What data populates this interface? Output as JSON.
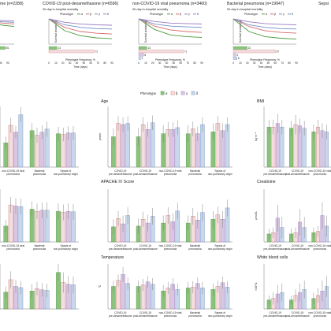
{
  "colors": {
    "alpha": "#8cc37c",
    "beta": "#f2dede",
    "gamma": "#d8c6e2",
    "delta": "#c8d8ea",
    "alpha_line": "#4a9a3c",
    "beta_line": "#d66a6a",
    "gamma_line": "#9a7cc0",
    "delta_line": "#6f8fc8",
    "axis": "#555555",
    "err": "#777777"
  },
  "legend": {
    "title": "Phenotype",
    "labels": [
      "α",
      "β",
      "γ",
      "δ"
    ]
  },
  "km_panels": [
    {
      "title": "me (n=2288)",
      "subtitle": "",
      "xlabel": "",
      "ylabel": "",
      "xticks": [
        "70",
        "80",
        "90"
      ],
      "labels": [
        "81",
        ""
      ],
      "show_legend": false,
      "series": [
        [
          0,
          1.0,
          0.9,
          0.85,
          0.82
        ],
        [
          0,
          1.0,
          0.93,
          0.9,
          0.88
        ],
        [
          0,
          1.0,
          0.97,
          0.96,
          0.95
        ],
        [
          0,
          1.0,
          0.95,
          0.93,
          0.92
        ]
      ]
    },
    {
      "title": "COVID-19 post-dexamethasone (n=6596)",
      "subtitle": "90-day in-hospital mortality",
      "xlabel": "Time (days)",
      "ylabel": "Survival probability",
      "xticks": [
        "0",
        "10",
        "20",
        "30",
        "40",
        "50",
        "60",
        "70",
        "80",
        "90"
      ],
      "labels": [
        "13",
        "72"
      ],
      "show_legend": true,
      "series": [
        [
          1.0,
          0.72,
          0.6,
          0.55,
          0.53
        ],
        [
          1.0,
          0.8,
          0.7,
          0.66,
          0.64
        ],
        [
          1.0,
          0.92,
          0.88,
          0.86,
          0.85
        ],
        [
          1.0,
          0.86,
          0.8,
          0.77,
          0.76
        ]
      ]
    },
    {
      "title": "non-COVID-19 viral pneumonia (n=3460)",
      "subtitle": "90-day in-hospital mortality",
      "xlabel": "Time (days)",
      "ylabel": "Survival probability",
      "xticks": [
        "0",
        "10",
        "20",
        "30",
        "40",
        "50",
        "60",
        "70",
        "80",
        "90"
      ],
      "labels": [
        "13",
        "71",
        "8",
        "3"
      ],
      "show_legend": true,
      "series": [
        [
          1.0,
          0.75,
          0.62,
          0.58,
          0.56
        ],
        [
          1.0,
          0.83,
          0.74,
          0.7,
          0.68
        ],
        [
          1.0,
          0.94,
          0.9,
          0.89,
          0.88
        ],
        [
          1.0,
          0.88,
          0.83,
          0.81,
          0.8
        ]
      ]
    },
    {
      "title": "Bacterial pneumonia (n=19947)",
      "subtitle": "90-day in-hospital mortality",
      "xlabel": "Time (days)",
      "ylabel": "Survival probability",
      "xticks": [
        "0",
        "10",
        "20",
        "30",
        "40",
        "50",
        "60",
        "70",
        "80",
        "90"
      ],
      "labels": [
        "22",
        "67",
        "4",
        "6"
      ],
      "show_legend": true,
      "series": [
        [
          1.0,
          0.7,
          0.58,
          0.54,
          0.52
        ],
        [
          1.0,
          0.82,
          0.72,
          0.68,
          0.66
        ],
        [
          1.0,
          0.93,
          0.89,
          0.87,
          0.86
        ],
        [
          1.0,
          0.86,
          0.8,
          0.77,
          0.76
        ]
      ]
    },
    {
      "title": "Sepsi",
      "subtitle": "",
      "xlabel": "",
      "ylabel": "",
      "xticks": [],
      "labels": [],
      "show_legend": false,
      "series": []
    }
  ],
  "km_common": {
    "phenotype_freq_label": "Phenotype Frequency, %",
    "xticks_freq": [
      "0",
      "20",
      "40",
      "60",
      "80"
    ]
  },
  "bar_panels": [
    {
      "title": "",
      "ylabel": "",
      "categories": [
        "non-COVID-19 viral pneumonia",
        "Bacterial pneumonia",
        "Sepsis of non-pulmonary origin"
      ],
      "values": [
        [
          3.2,
          5.5,
          4.6,
          6.9
        ],
        [
          4.8,
          4.2,
          4.6,
          5.0
        ],
        [
          4.4,
          4.3,
          4.5,
          4.5
        ]
      ],
      "err": [
        [
          0.8,
          1.0,
          0.8,
          1.0
        ],
        [
          1.0,
          1.0,
          0.9,
          1.0
        ],
        [
          0.9,
          0.9,
          0.9,
          0.9
        ]
      ],
      "yrange": [
        0,
        8
      ]
    },
    {
      "title": "Age",
      "ylabel": "years",
      "categories": [
        "COVID-19 pre-dexamethasone",
        "COVID-19 post-dexamethasone",
        "non-COVID-19 viral pneumonia",
        "Bacterial pneumonia",
        "Sepsis of non-pulmonary origin"
      ],
      "values": [
        [
          50,
          72,
          70,
          72
        ],
        [
          50,
          70,
          62,
          73
        ],
        [
          55,
          62,
          62,
          65
        ],
        [
          55,
          63,
          55,
          70
        ],
        [
          58,
          72,
          60,
          70
        ]
      ],
      "err": [
        [
          14,
          12,
          12,
          12
        ],
        [
          14,
          12,
          12,
          12
        ],
        [
          14,
          12,
          12,
          12
        ],
        [
          14,
          12,
          12,
          12
        ],
        [
          14,
          12,
          12,
          12
        ]
      ],
      "yrange": [
        0,
        100
      ]
    },
    {
      "title": "BMI",
      "ylabel": "kg m⁻²",
      "categories": [
        "COVID-19 pre-dexamethasone",
        "COVID-19 post-dexamethasone",
        "non-COVID-19 viral pneumonia"
      ],
      "values": [
        [
          33,
          33,
          36,
          33
        ],
        [
          32,
          35,
          34,
          32
        ],
        [
          29,
          33,
          30,
          29
        ]
      ],
      "err": [
        [
          6,
          6,
          8,
          6
        ],
        [
          6,
          8,
          6,
          6
        ],
        [
          6,
          6,
          6,
          6
        ]
      ],
      "yrange": [
        0,
        50
      ]
    },
    {
      "title": "",
      "ylabel": "",
      "categories": [
        "non-COVID-19 viral pneumonia",
        "Bacterial pneumonia",
        "Sepsis of non-pulmonary origin"
      ],
      "values": [
        [
          3.0,
          7.0,
          6.8,
          6.7
        ],
        [
          6.2,
          5.8,
          6.0,
          6.0
        ],
        [
          5.8,
          5.6,
          5.8,
          5.7
        ]
      ],
      "err": [
        [
          1.2,
          1.5,
          1.5,
          1.5
        ],
        [
          1.5,
          1.5,
          1.5,
          1.5
        ],
        [
          1.5,
          1.5,
          1.5,
          1.5
        ]
      ],
      "yrange": [
        0,
        10
      ]
    },
    {
      "title": "APACHE IV Score",
      "ylabel": "",
      "categories": [
        "COVID-19 pre-dexamethasone",
        "COVID-19 post-dexamethasone",
        "non-COVID-19 viral pneumonia",
        "Bacterial pneumonia",
        "Sepsis of non-pulmonary origin"
      ],
      "values": [
        [
          40,
          62,
          48,
          70
        ],
        [
          42,
          60,
          50,
          68
        ],
        [
          50,
          70,
          54,
          82
        ],
        [
          50,
          68,
          58,
          78
        ],
        [
          60,
          72,
          60,
          90
        ]
      ],
      "err": [
        [
          20,
          20,
          22,
          22
        ],
        [
          20,
          20,
          22,
          22
        ],
        [
          20,
          22,
          22,
          22
        ],
        [
          20,
          22,
          22,
          22
        ],
        [
          22,
          22,
          22,
          22
        ]
      ],
      "yrange": [
        0,
        140
      ]
    },
    {
      "title": "Creatinine",
      "ylabel": "μmol/L",
      "categories": [
        "COVID-19 pre-dexamethasone",
        "COVID-19 post-dexamethasone",
        "non-COVID-19 viral pneumonia"
      ],
      "values": [
        [
          60,
          70,
          180,
          110
        ],
        [
          60,
          70,
          150,
          110
        ],
        [
          70,
          80,
          200,
          120
        ]
      ],
      "err": [
        [
          40,
          40,
          100,
          80
        ],
        [
          40,
          40,
          100,
          80
        ],
        [
          40,
          40,
          100,
          80
        ]
      ],
      "yrange": [
        0,
        400
      ]
    },
    {
      "title": "",
      "ylabel": "",
      "categories": [
        "",
        "",
        ""
      ],
      "values": [
        [
          3.0,
          5.2,
          4.0,
          3.8
        ],
        [
          3.2,
          3.6,
          3.4,
          3.3
        ],
        [
          6.5,
          4.7,
          4.4,
          4.3
        ]
      ],
      "err": [
        [
          1.0,
          1.5,
          1.2,
          1.2
        ],
        [
          1.2,
          1.2,
          1.2,
          1.2
        ],
        [
          1.5,
          1.8,
          1.5,
          1.5
        ]
      ],
      "yrange": [
        0,
        8
      ]
    },
    {
      "title": "Temperature",
      "ylabel": "°C",
      "categories": [
        "COVID-19 pre-dexamethasone",
        "COVID-19 post-dexamethasone",
        "non-COVID-19 viral pneumonia",
        "Bacterial pneumonia",
        "Sepsis of non-pulmonary origin"
      ],
      "values": [
        [
          38.0,
          38.8,
          39.6,
          38.4
        ],
        [
          38.0,
          38.2,
          38.6,
          38.3
        ],
        [
          37.4,
          37.8,
          38.3,
          37.6
        ],
        [
          37.8,
          37.9,
          38.4,
          37.8
        ],
        [
          37.6,
          38.0,
          38.5,
          37.9
        ]
      ],
      "err": [
        [
          0.8,
          0.8,
          1.0,
          0.8
        ],
        [
          0.8,
          0.8,
          0.8,
          0.8
        ],
        [
          0.8,
          0.8,
          0.8,
          0.8
        ],
        [
          0.8,
          0.8,
          0.8,
          0.8
        ],
        [
          0.8,
          0.8,
          0.8,
          0.8
        ]
      ],
      "yrange": [
        35,
        41
      ]
    },
    {
      "title": "White blood cells",
      "ylabel": "×10⁹/L",
      "categories": [
        "COVID-19 pre-dexamethasone",
        "COVID-19 post-dexamethasone",
        "non-COVID-19 viral pneumonia"
      ],
      "values": [
        [
          6,
          7,
          10,
          11
        ],
        [
          6,
          9,
          11,
          13
        ],
        [
          7,
          9,
          12,
          15
        ]
      ],
      "err": [
        [
          3,
          4,
          6,
          6
        ],
        [
          3,
          4,
          6,
          6
        ],
        [
          4,
          5,
          7,
          7
        ]
      ],
      "yrange": [
        0,
        30
      ]
    }
  ]
}
